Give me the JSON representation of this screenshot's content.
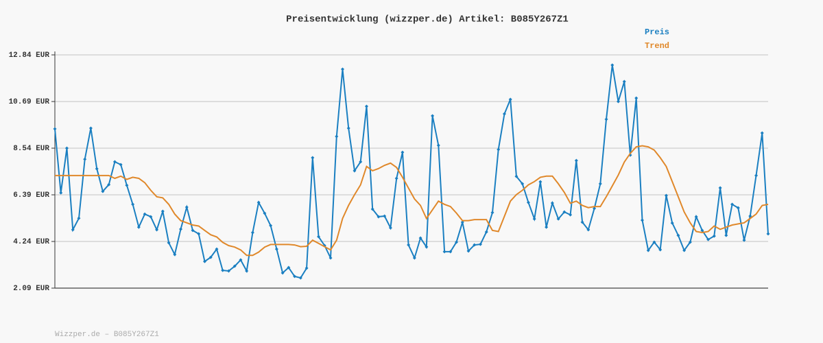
{
  "chart_data": {
    "type": "line",
    "title": "Preisentwicklung (wizzper.de) Artikel: B085Y267Z1",
    "credit": "Wizzper.de – B085Y267Z1",
    "ylim": [
      2.09,
      12.84
    ],
    "yticks": [
      {
        "value": 2.09,
        "label": "2.09 EUR"
      },
      {
        "value": 4.24,
        "label": "4.24 EUR"
      },
      {
        "value": 6.39,
        "label": "6.39 EUR"
      },
      {
        "value": 8.54,
        "label": "8.54 EUR"
      },
      {
        "value": 10.69,
        "label": "10.69 EUR"
      },
      {
        "value": 12.84,
        "label": "12.84 EUR"
      }
    ],
    "grid": true,
    "legend": "top-right",
    "series": [
      {
        "name": "Preis",
        "color": "#1a7fc1",
        "markers": true,
        "values": [
          9.43,
          6.48,
          8.54,
          4.78,
          5.31,
          8.03,
          9.46,
          7.59,
          6.55,
          6.86,
          7.91,
          7.78,
          6.83,
          5.95,
          4.9,
          5.5,
          5.38,
          4.78,
          5.63,
          4.18,
          3.64,
          4.81,
          5.82,
          4.75,
          4.59,
          3.32,
          3.51,
          3.89,
          2.91,
          2.88,
          3.1,
          3.39,
          2.88,
          4.65,
          6.04,
          5.54,
          4.97,
          3.89,
          2.79,
          3.04,
          2.63,
          2.56,
          3.01,
          8.1,
          4.46,
          4.05,
          3.48,
          9.08,
          12.18,
          9.46,
          7.5,
          7.91,
          10.47,
          5.73,
          5.38,
          5.41,
          4.87,
          7.15,
          8.35,
          4.08,
          3.48,
          4.4,
          3.99,
          10.03,
          8.67,
          3.77,
          3.77,
          4.21,
          5.13,
          3.8,
          4.08,
          4.11,
          4.68,
          5.57,
          8.48,
          10.12,
          10.79,
          7.24,
          6.9,
          6.04,
          5.28,
          6.99,
          4.9,
          6.01,
          5.28,
          5.6,
          5.47,
          7.97,
          5.13,
          4.78,
          5.76,
          6.9,
          9.87,
          12.37,
          10.69,
          11.61,
          8.22,
          10.85,
          5.22,
          3.83,
          4.21,
          3.86,
          6.36,
          5.09,
          4.52,
          3.83,
          4.21,
          5.38,
          4.75,
          4.33,
          4.49,
          6.71,
          4.52,
          5.95,
          5.79,
          4.3,
          5.41,
          7.28,
          9.24,
          4.59
        ]
      },
      {
        "name": "Trend",
        "color": "#e0882a",
        "markers": false,
        "values": [
          7.28,
          7.28,
          7.28,
          7.28,
          7.28,
          7.28,
          7.28,
          7.28,
          7.28,
          7.28,
          7.15,
          7.25,
          7.1,
          7.2,
          7.15,
          6.95,
          6.6,
          6.3,
          6.25,
          5.95,
          5.5,
          5.2,
          5.1,
          5.0,
          4.95,
          4.75,
          4.55,
          4.45,
          4.2,
          4.05,
          3.98,
          3.85,
          3.6,
          3.6,
          3.75,
          3.98,
          4.1,
          4.1,
          4.1,
          4.1,
          4.08,
          4.0,
          4.02,
          4.3,
          4.15,
          4.0,
          3.85,
          4.3,
          5.3,
          5.9,
          6.4,
          6.85,
          7.7,
          7.5,
          7.6,
          7.75,
          7.85,
          7.65,
          7.2,
          6.7,
          6.2,
          5.9,
          5.3,
          5.7,
          6.1,
          5.95,
          5.85,
          5.55,
          5.2,
          5.2,
          5.25,
          5.25,
          5.25,
          4.75,
          4.7,
          5.4,
          6.1,
          6.4,
          6.6,
          6.85,
          7.0,
          7.2,
          7.25,
          7.25,
          6.9,
          6.5,
          6.0,
          6.1,
          5.9,
          5.8,
          5.85,
          5.85,
          6.3,
          6.8,
          7.3,
          7.9,
          8.3,
          8.6,
          8.65,
          8.6,
          8.45,
          8.1,
          7.7,
          7.0,
          6.3,
          5.6,
          5.1,
          4.7,
          4.65,
          4.7,
          4.95,
          4.8,
          4.9,
          5.0,
          5.05,
          5.1,
          5.3,
          5.5,
          5.9,
          5.95
        ]
      }
    ]
  }
}
